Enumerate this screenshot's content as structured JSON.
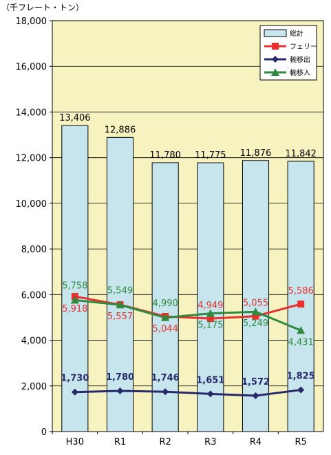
{
  "unit_label": "（千フレート・トン）",
  "colors": {
    "plot_bg": "#f7f3c0",
    "bar_fill": "#c6e5ec",
    "bar_stroke": "#000000",
    "ferry": "#e8302e",
    "outbound": "#27296a",
    "inbound": "#2f8a3f",
    "bar_label": "#000000"
  },
  "chart_data": {
    "type": "bar",
    "categories": [
      "H30",
      "R1",
      "R2",
      "R3",
      "R4",
      "R5"
    ],
    "ylim": [
      0,
      18000
    ],
    "yticks": [
      0,
      2000,
      4000,
      6000,
      8000,
      10000,
      12000,
      14000,
      16000,
      18000
    ],
    "ytick_labels": [
      "0",
      "2,000",
      "4,000",
      "6,000",
      "8,000",
      "10,000",
      "12,000",
      "14,000",
      "16,000",
      "18,000"
    ],
    "grid": true,
    "legend_position": "top-right",
    "series": [
      {
        "name": "総計",
        "type": "bar",
        "values": [
          13406,
          12886,
          11780,
          11775,
          11876,
          11842
        ],
        "labels": [
          "13,406",
          "12,886",
          "11,780",
          "11,775",
          "11,876",
          "11,842"
        ]
      },
      {
        "name": "フェリー",
        "type": "line",
        "marker": "square",
        "values": [
          5918,
          5557,
          5044,
          4949,
          5055,
          5586
        ],
        "labels": [
          "5,918",
          "5,557",
          "5,044",
          "4,949",
          "5,055",
          "5,586"
        ]
      },
      {
        "name": "輸移出",
        "type": "line",
        "marker": "diamond",
        "values": [
          1730,
          1780,
          1746,
          1651,
          1572,
          1825
        ],
        "labels": [
          "1,730",
          "1,780",
          "1,746",
          "1,651",
          "1,572",
          "1,825"
        ]
      },
      {
        "name": "輸移入",
        "type": "line",
        "marker": "triangle",
        "values": [
          5758,
          5549,
          4990,
          5175,
          5249,
          4431
        ],
        "labels": [
          "5,758",
          "5,549",
          "4,990",
          "5,175",
          "5,249",
          "4,431"
        ]
      }
    ]
  }
}
